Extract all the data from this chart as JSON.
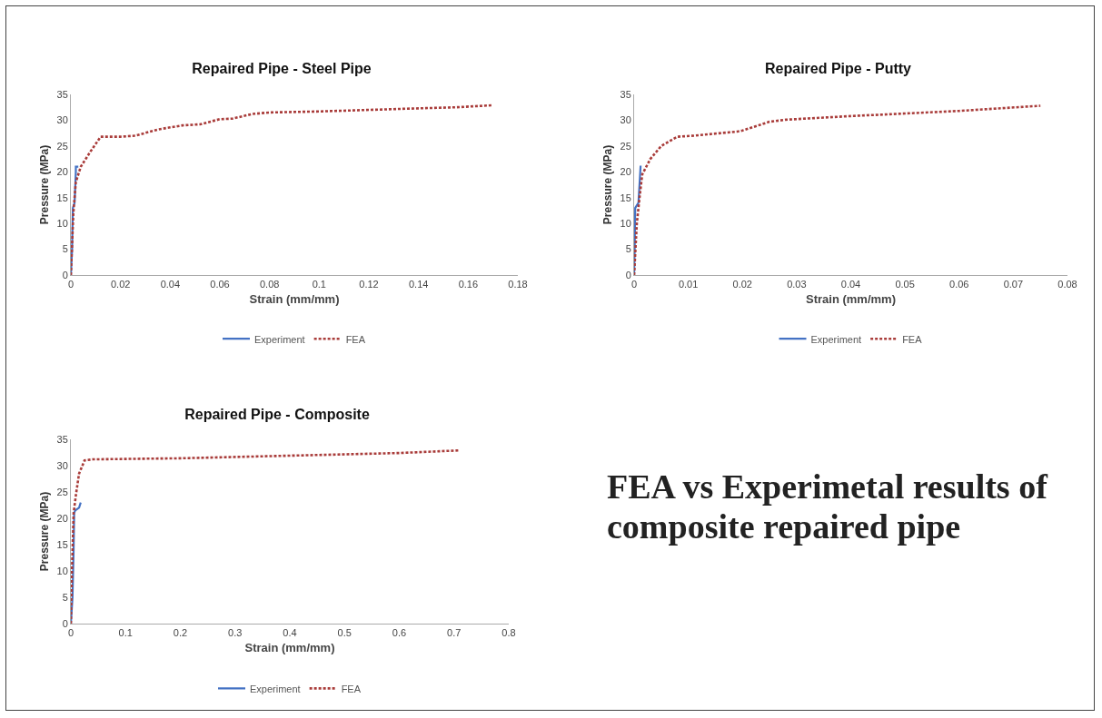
{
  "chart_data": [
    {
      "type": "line",
      "title": "Repaired Pipe - Steel Pipe",
      "xlabel": "Strain (mm/mm)",
      "ylabel": "Pressure (MPa)",
      "xlim": [
        0,
        0.18
      ],
      "xticks": [
        0,
        0.02,
        0.04,
        0.06,
        0.08,
        0.1,
        0.12,
        0.14,
        0.16,
        0.18
      ],
      "ylim": [
        0,
        35
      ],
      "yticks": [
        0,
        5,
        10,
        15,
        20,
        25,
        30,
        35
      ],
      "legend": "bottom",
      "series": [
        {
          "name": "Experiment",
          "color": "#4472c4",
          "line_style": "solid",
          "x": [
            0,
            0.0005,
            0.0008,
            0.0015,
            0.002,
            0.002,
            0.003
          ],
          "values": [
            0,
            5,
            13,
            14,
            20,
            21,
            21
          ]
        },
        {
          "name": "FEA",
          "color": "#a93c3a",
          "line_style": "dotted",
          "x": [
            0,
            0.001,
            0.002,
            0.004,
            0.008,
            0.012,
            0.02,
            0.026,
            0.035,
            0.045,
            0.052,
            0.06,
            0.065,
            0.073,
            0.08,
            0.1,
            0.12,
            0.14,
            0.155,
            0.17
          ],
          "values": [
            0,
            12,
            18,
            21,
            24,
            26.8,
            26.8,
            27,
            28.2,
            29,
            29.2,
            30.2,
            30.3,
            31.2,
            31.5,
            31.7,
            32,
            32.3,
            32.5,
            32.9
          ]
        }
      ]
    },
    {
      "type": "line",
      "title": "Repaired Pipe - Putty",
      "xlabel": "Strain (mm/mm)",
      "ylabel": "Pressure (MPa)",
      "xlim": [
        0,
        0.08
      ],
      "xticks": [
        0,
        0.01,
        0.02,
        0.03,
        0.04,
        0.05,
        0.06,
        0.07,
        0.08
      ],
      "ylim": [
        0,
        35
      ],
      "yticks": [
        0,
        5,
        10,
        15,
        20,
        25,
        30,
        35
      ],
      "legend": "bottom",
      "series": [
        {
          "name": "Experiment",
          "color": "#4472c4",
          "line_style": "solid",
          "x": [
            0,
            0.0001,
            0.0002,
            0.0008,
            0.0012
          ],
          "values": [
            0,
            5,
            13,
            14,
            21.2
          ]
        },
        {
          "name": "FEA",
          "color": "#a93c3a",
          "line_style": "dotted",
          "x": [
            0,
            0.0005,
            0.001,
            0.0015,
            0.003,
            0.005,
            0.008,
            0.011,
            0.019,
            0.02,
            0.025,
            0.028,
            0.04,
            0.05,
            0.06,
            0.075
          ],
          "values": [
            0,
            10,
            15,
            19.5,
            22.5,
            25,
            26.8,
            27,
            27.8,
            28,
            29.7,
            30.1,
            30.8,
            31.3,
            31.8,
            32.8
          ]
        }
      ]
    },
    {
      "type": "line",
      "title": "Repaired Pipe - Composite",
      "xlabel": "Strain (mm/mm)",
      "ylabel": "Pressure (MPa)",
      "xlim": [
        0,
        0.8
      ],
      "xticks": [
        0,
        0.1,
        0.2,
        0.3,
        0.4,
        0.5,
        0.6,
        0.7,
        0.8
      ],
      "ylim": [
        0,
        35
      ],
      "yticks": [
        0,
        5,
        10,
        15,
        20,
        25,
        30,
        35
      ],
      "legend": "bottom",
      "series": [
        {
          "name": "Experiment",
          "color": "#4472c4",
          "line_style": "solid",
          "x": [
            0,
            0.003,
            0.005,
            0.006,
            0.008,
            0.015,
            0.018
          ],
          "values": [
            0,
            5,
            14,
            21,
            21.5,
            22,
            23
          ]
        },
        {
          "name": "FEA",
          "color": "#a93c3a",
          "line_style": "dotted",
          "x": [
            0,
            0.002,
            0.005,
            0.01,
            0.015,
            0.025,
            0.04,
            0.2,
            0.4,
            0.6,
            0.71
          ],
          "values": [
            0,
            10,
            21,
            25,
            28.5,
            31,
            31.2,
            31.4,
            31.9,
            32.4,
            32.9
          ]
        }
      ]
    },
    {
      "type": "other",
      "title": "FEA vs Experimetal results of composite repaired pipe"
    }
  ]
}
